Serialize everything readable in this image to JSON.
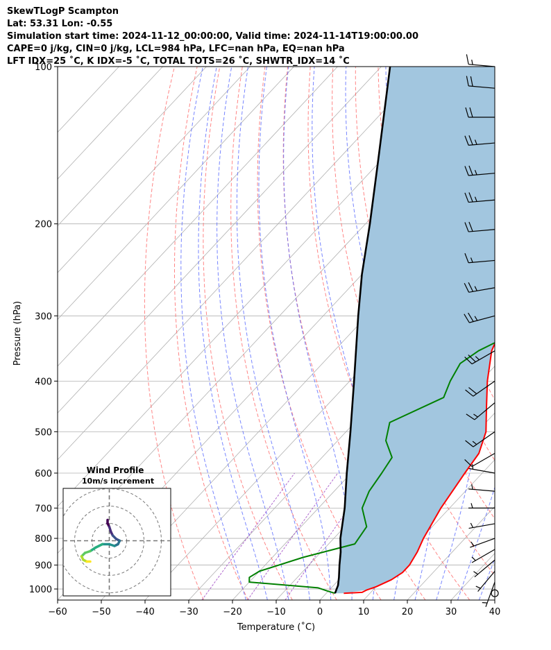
{
  "header": {
    "line1": "SkewTLogP Scampton",
    "line2": "Lat: 53.31   Lon: -0.55",
    "line3": "Simulation start time: 2024-11-12_00:00:00, Valid time: 2024-11-14T19:00:00.00",
    "line4": "CAPE=0 j/kg, CIN=0 j/kg, LCL=984 hPa, LFC=nan hPa, EQ=nan hPa",
    "line5": "LFT IDX=25 ˚C, K IDX=-5 ˚C, TOTAL TOTS=26 ˚C, SHWTR_IDX=14 ˚C"
  },
  "colors": {
    "temperature": "#ff0000",
    "dewpoint": "#008000",
    "parcel": "#000000",
    "fill": "#a2c6df",
    "dry_adiabat": "#ff6666",
    "moist_adiabat": "#5566ff",
    "mixing_ratio": "#9a40c0",
    "isotherm": "#b0b0b0"
  },
  "inset": {
    "title": "Wind Profile",
    "subtitle": "10m/s increment"
  },
  "chart_data": {
    "type": "line",
    "title": "SkewTLogP Scampton",
    "xlabel": "Temperature (˚C)",
    "ylabel": "Pressure (hPa)",
    "xlim": [
      -60,
      40
    ],
    "ylim": [
      1050,
      100
    ],
    "y_scale": "log",
    "grid": true,
    "x_ticks": [
      "−60",
      "−50",
      "−40",
      "−30",
      "−20",
      "−10",
      "0",
      "10",
      "20",
      "30",
      "40"
    ],
    "y_ticks": [
      {
        "p": 100,
        "label": "100"
      },
      {
        "p": 200,
        "label": "200"
      },
      {
        "p": 300,
        "label": "300"
      },
      {
        "p": 400,
        "label": "400"
      },
      {
        "p": 500,
        "label": "500"
      },
      {
        "p": 600,
        "label": "600"
      },
      {
        "p": 700,
        "label": "700"
      },
      {
        "p": 800,
        "label": "800"
      },
      {
        "p": 900,
        "label": "900"
      },
      {
        "p": 1000,
        "label": "1000"
      }
    ],
    "series": [
      {
        "name": "Temperature",
        "points": [
          [
            1019,
            4
          ],
          [
            1015,
            8
          ],
          [
            1005,
            8.5
          ],
          [
            990,
            10
          ],
          [
            960,
            12
          ],
          [
            930,
            13
          ],
          [
            900,
            13
          ],
          [
            850,
            12
          ],
          [
            800,
            10.5
          ],
          [
            700,
            8
          ],
          [
            600,
            6
          ],
          [
            550,
            5
          ],
          [
            500,
            2
          ],
          [
            450,
            -3
          ],
          [
            400,
            -8.5
          ],
          [
            350,
            -14
          ],
          [
            300,
            -18
          ],
          [
            270,
            -21
          ],
          [
            250,
            -23
          ],
          [
            230,
            -24
          ],
          [
            200,
            -28
          ],
          [
            180,
            -31
          ],
          [
            160,
            -34
          ],
          [
            140,
            -37
          ],
          [
            120,
            -41
          ],
          [
            100,
            -44
          ]
        ]
      },
      {
        "name": "Dewpoint",
        "points": [
          [
            1019,
            2
          ],
          [
            1010,
            0
          ],
          [
            995,
            -3
          ],
          [
            970,
            -20
          ],
          [
            950,
            -21
          ],
          [
            925,
            -20
          ],
          [
            870,
            -13
          ],
          [
            820,
            -4
          ],
          [
            760,
            -5
          ],
          [
            700,
            -10
          ],
          [
            650,
            -12
          ],
          [
            600,
            -13
          ],
          [
            560,
            -14
          ],
          [
            520,
            -19
          ],
          [
            480,
            -22
          ],
          [
            430,
            -15
          ],
          [
            400,
            -17
          ],
          [
            370,
            -18.5
          ],
          [
            350,
            -17
          ],
          [
            320,
            -12
          ],
          [
            300,
            -9
          ],
          [
            280,
            -10
          ],
          [
            260,
            -13
          ],
          [
            240,
            -15
          ],
          [
            220,
            -19
          ],
          [
            190,
            -26
          ],
          [
            170,
            -28
          ],
          [
            150,
            -29
          ],
          [
            130,
            -31
          ],
          [
            115,
            -35
          ],
          [
            100,
            -41
          ]
        ]
      },
      {
        "name": "Parcel",
        "points": [
          [
            1019,
            2
          ],
          [
            984,
            1
          ],
          [
            950,
            -0.5
          ],
          [
            900,
            -3
          ],
          [
            850,
            -5.5
          ],
          [
            800,
            -8.5
          ],
          [
            700,
            -14
          ],
          [
            600,
            -21
          ],
          [
            500,
            -29
          ],
          [
            400,
            -39
          ],
          [
            300,
            -52
          ],
          [
            250,
            -60
          ],
          [
            200,
            -69
          ],
          [
            150,
            -81
          ],
          [
            100,
            -98
          ]
        ]
      }
    ],
    "winds": [
      {
        "p": 1019,
        "calm": true
      },
      {
        "p": 970,
        "dir": 200,
        "spd": 4
      },
      {
        "p": 925,
        "dir": 220,
        "spd": 4
      },
      {
        "p": 880,
        "dir": 230,
        "spd": 4
      },
      {
        "p": 840,
        "dir": 240,
        "spd": 5
      },
      {
        "p": 800,
        "dir": 250,
        "spd": 5
      },
      {
        "p": 750,
        "dir": 260,
        "spd": 5
      },
      {
        "p": 700,
        "dir": 270,
        "spd": 5
      },
      {
        "p": 650,
        "dir": 275,
        "spd": 5
      },
      {
        "p": 600,
        "dir": 280,
        "spd": 5
      },
      {
        "p": 550,
        "dir": 240,
        "spd": 10
      },
      {
        "p": 500,
        "dir": 235,
        "spd": 15
      },
      {
        "p": 440,
        "dir": 230,
        "spd": 15
      },
      {
        "p": 400,
        "dir": 235,
        "spd": 20
      },
      {
        "p": 350,
        "dir": 240,
        "spd": 25
      },
      {
        "p": 300,
        "dir": 255,
        "spd": 25
      },
      {
        "p": 265,
        "dir": 260,
        "spd": 25
      },
      {
        "p": 235,
        "dir": 265,
        "spd": 15
      },
      {
        "p": 205,
        "dir": 265,
        "spd": 20
      },
      {
        "p": 180,
        "dir": 265,
        "spd": 25
      },
      {
        "p": 160,
        "dir": 265,
        "spd": 25
      },
      {
        "p": 140,
        "dir": 265,
        "spd": 25
      },
      {
        "p": 125,
        "dir": 270,
        "spd": 20
      },
      {
        "p": 110,
        "dir": 275,
        "spd": 20
      },
      {
        "p": 100,
        "dir": 275,
        "spd": 15
      }
    ],
    "hodograph": {
      "range": 30,
      "rings": [
        10,
        20,
        30
      ],
      "points": [
        [
          -1,
          12
        ],
        [
          -1,
          10
        ],
        [
          0,
          8
        ],
        [
          1,
          5
        ],
        [
          2,
          3
        ],
        [
          4,
          1
        ],
        [
          6,
          0
        ],
        [
          5,
          -2
        ],
        [
          3,
          -3
        ],
        [
          0,
          -2
        ],
        [
          -4,
          -2
        ],
        [
          -8,
          -4
        ],
        [
          -11,
          -6
        ],
        [
          -14,
          -7
        ],
        [
          -16,
          -9
        ],
        [
          -15,
          -11
        ],
        [
          -13,
          -12
        ],
        [
          -11,
          -12
        ]
      ]
    }
  }
}
